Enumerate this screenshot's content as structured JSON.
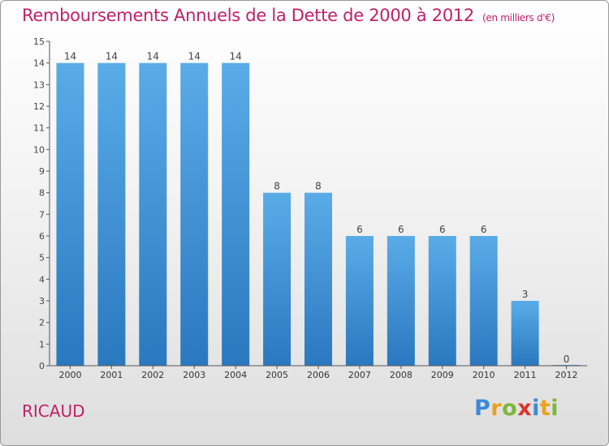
{
  "header": {
    "title": "Remboursements Annuels de la Dette de 2000 à 2012",
    "unit": "(en milliers d'€)"
  },
  "footer": {
    "commune": "RICAUD",
    "logo_letters": [
      "P",
      "r",
      "o",
      "x",
      "i",
      "t",
      "i"
    ]
  },
  "chart_data": {
    "type": "bar",
    "categories": [
      "2000",
      "2001",
      "2002",
      "2003",
      "2004",
      "2005",
      "2006",
      "2007",
      "2008",
      "2009",
      "2010",
      "2011",
      "2012"
    ],
    "values": [
      14,
      14,
      14,
      14,
      14,
      8,
      8,
      6,
      6,
      6,
      6,
      3,
      0
    ],
    "title": "Remboursements Annuels de la Dette de 2000 à 2012",
    "xlabel": "",
    "ylabel": "",
    "ylim": [
      0,
      15
    ],
    "yticks": [
      0,
      1,
      2,
      3,
      4,
      5,
      6,
      7,
      8,
      9,
      10,
      11,
      12,
      13,
      14,
      15
    ],
    "grid": false,
    "legend": "none",
    "bar_color": "#4a9de0",
    "title_color": "#c0206a"
  }
}
